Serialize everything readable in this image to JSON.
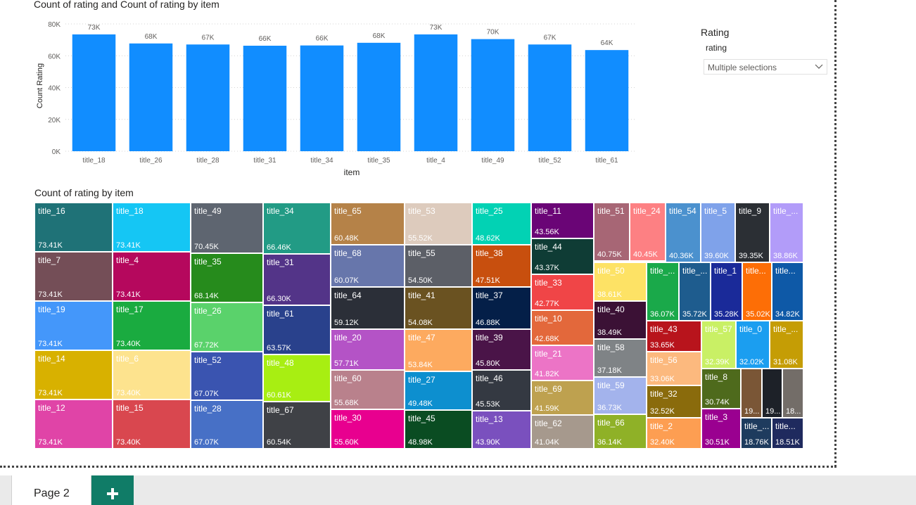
{
  "bar_visual": {
    "title": "Count of rating and Count of rating by item"
  },
  "treemap_visual": {
    "title": "Count of rating by item"
  },
  "slicer": {
    "header": "Rating",
    "field": "rating",
    "selected": "Multiple selections",
    "icon": "chevron-down-icon"
  },
  "pages": {
    "tabs": [
      {
        "label": "Page 2"
      }
    ],
    "add_icon": "plus-icon"
  },
  "colors": {
    "bar": "#118dff",
    "grid": "#d4d4d4",
    "axis_text": "#605e5c",
    "add_tab": "#107c67"
  },
  "chart_data": [
    {
      "type": "bar",
      "title": "Count of rating and Count of rating by item",
      "xlabel": "item",
      "ylabel": "Count Rating",
      "ylim": [
        0,
        80000
      ],
      "yticks": [
        {
          "value": 0,
          "label": "0K"
        },
        {
          "value": 20000,
          "label": "20K"
        },
        {
          "value": 40000,
          "label": "40K"
        },
        {
          "value": 60000,
          "label": "60K"
        },
        {
          "value": 80000,
          "label": "80K"
        }
      ],
      "grid": true,
      "categories": [
        "title_18",
        "title_26",
        "title_28",
        "title_31",
        "title_34",
        "title_35",
        "title_4",
        "title_49",
        "title_52",
        "title_61"
      ],
      "values": [
        73410,
        67720,
        67070,
        66300,
        66460,
        68140,
        73410,
        70450,
        67070,
        63570
      ],
      "data_labels": [
        "73K",
        "68K",
        "67K",
        "66K",
        "66K",
        "68K",
        "73K",
        "70K",
        "67K",
        "64K"
      ]
    },
    {
      "type": "treemap",
      "title": "Count of rating by item",
      "items": [
        {
          "name": "title_16",
          "label": "73.41K",
          "value": 73410,
          "color": "#1f7277"
        },
        {
          "name": "title_7",
          "label": "73.41K",
          "value": 73410,
          "color": "#744e57"
        },
        {
          "name": "title_19",
          "label": "73.41K",
          "value": 73410,
          "color": "#4497fa"
        },
        {
          "name": "title_14",
          "label": "73.41K",
          "value": 73410,
          "color": "#d8b100"
        },
        {
          "name": "title_12",
          "label": "73.41K",
          "value": 73410,
          "color": "#e044a7"
        },
        {
          "name": "title_18",
          "label": "73.41K",
          "value": 73410,
          "color": "#15c6f4"
        },
        {
          "name": "title_4",
          "label": "73.41K",
          "value": 73410,
          "color": "#b5085d"
        },
        {
          "name": "title_17",
          "label": "73.40K",
          "value": 73400,
          "color": "#1aab40"
        },
        {
          "name": "title_6",
          "label": "73.40K",
          "value": 73400,
          "color": "#fde38e"
        },
        {
          "name": "title_15",
          "label": "73.40K",
          "value": 73400,
          "color": "#d9474f"
        },
        {
          "name": "title_49",
          "label": "70.45K",
          "value": 70450,
          "color": "#5e6570"
        },
        {
          "name": "title_35",
          "label": "68.14K",
          "value": 68140,
          "color": "#268b1c"
        },
        {
          "name": "title_26",
          "label": "67.72K",
          "value": 67720,
          "color": "#5ad26b"
        },
        {
          "name": "title_52",
          "label": "67.07K",
          "value": 67070,
          "color": "#3a54b0"
        },
        {
          "name": "title_28",
          "label": "67.07K",
          "value": 67070,
          "color": "#4770c6"
        },
        {
          "name": "title_34",
          "label": "66.46K",
          "value": 66460,
          "color": "#229b85"
        },
        {
          "name": "title_31",
          "label": "66.30K",
          "value": 66300,
          "color": "#533488"
        },
        {
          "name": "title_61",
          "label": "63.57K",
          "value": 63570,
          "color": "#29418c"
        },
        {
          "name": "title_48",
          "label": "60.61K",
          "value": 60610,
          "color": "#a8ee12"
        },
        {
          "name": "title_67",
          "label": "60.54K",
          "value": 60540,
          "color": "#3f4146"
        },
        {
          "name": "title_65",
          "label": "60.48K",
          "value": 60480,
          "color": "#b58248"
        },
        {
          "name": "title_68",
          "label": "60.07K",
          "value": 60070,
          "color": "#6776ab"
        },
        {
          "name": "title_64",
          "label": "59.12K",
          "value": 59120,
          "color": "#2b2f38"
        },
        {
          "name": "title_20",
          "label": "57.71K",
          "value": 57710,
          "color": "#b453c6"
        },
        {
          "name": "title_60",
          "label": "55.68K",
          "value": 55680,
          "color": "#b9818c"
        },
        {
          "name": "title_30",
          "label": "55.60K",
          "value": 55600,
          "color": "#e8008f"
        },
        {
          "name": "title_53",
          "label": "55.52K",
          "value": 55520,
          "color": "#ddcbbd"
        },
        {
          "name": "title_55",
          "label": "54.50K",
          "value": 54500,
          "color": "#5c5f67"
        },
        {
          "name": "title_41",
          "label": "54.08K",
          "value": 54080,
          "color": "#6a5221"
        },
        {
          "name": "title_47",
          "label": "53.84K",
          "value": 53840,
          "color": "#fdaa5f"
        },
        {
          "name": "title_27",
          "label": "49.48K",
          "value": 49480,
          "color": "#0d8fcf"
        },
        {
          "name": "title_45",
          "label": "48.98K",
          "value": 48980,
          "color": "#0a4c22"
        },
        {
          "name": "title_25",
          "label": "48.62K",
          "value": 48620,
          "color": "#02d2b4"
        },
        {
          "name": "title_38",
          "label": "47.51K",
          "value": 47510,
          "color": "#c84f0e"
        },
        {
          "name": "title_37",
          "label": "46.88K",
          "value": 46880,
          "color": "#041f48"
        },
        {
          "name": "title_39",
          "label": "45.80K",
          "value": 45800,
          "color": "#4a1448"
        },
        {
          "name": "title_46",
          "label": "45.53K",
          "value": 45530,
          "color": "#343942"
        },
        {
          "name": "title_13",
          "label": "43.90K",
          "value": 43900,
          "color": "#7a50be"
        },
        {
          "name": "title_11",
          "label": "43.56K",
          "value": 43560,
          "color": "#6a0576"
        },
        {
          "name": "title_44",
          "label": "43.37K",
          "value": 43370,
          "color": "#0f3c35"
        },
        {
          "name": "title_33",
          "label": "42.77K",
          "value": 42770,
          "color": "#f04547"
        },
        {
          "name": "title_10",
          "label": "42.68K",
          "value": 42680,
          "color": "#e3683b"
        },
        {
          "name": "title_21",
          "label": "41.82K",
          "value": 41820,
          "color": "#ec74c6"
        },
        {
          "name": "title_69",
          "label": "41.59K",
          "value": 41590,
          "color": "#bea14f"
        },
        {
          "name": "title_62",
          "label": "41.04K",
          "value": 41040,
          "color": "#a6998d"
        },
        {
          "name": "title_51",
          "label": "40.75K",
          "value": 40750,
          "color": "#a76675"
        },
        {
          "name": "title_24",
          "label": "40.45K",
          "value": 40450,
          "color": "#fd8083"
        },
        {
          "name": "title_50",
          "label": "38.61K",
          "value": 38610,
          "color": "#fde265"
        },
        {
          "name": "title_40",
          "label": "38.49K",
          "value": 38490,
          "color": "#3b1135"
        },
        {
          "name": "title_58",
          "label": "37.18K",
          "value": 37180,
          "color": "#7f8386"
        },
        {
          "name": "title_59",
          "label": "36.73K",
          "value": 36730,
          "color": "#a3b3ec"
        },
        {
          "name": "title_66",
          "label": "36.14K",
          "value": 36140,
          "color": "#8fb127"
        },
        {
          "name": "title_54",
          "label": "40.36K",
          "value": 40360,
          "color": "#4b91ce"
        },
        {
          "name": "title_5",
          "label": "39.60K",
          "value": 39600,
          "color": "#7fa2ea"
        },
        {
          "name": "title_9",
          "label": "39.35K",
          "value": 39350,
          "color": "#2b2f34"
        },
        {
          "name": "title_...",
          "label": "38.86K",
          "value": 38860,
          "color": "#b29cf9"
        },
        {
          "name": "title_...",
          "label": "36.07K",
          "value": 36070,
          "color": "#1aa94a"
        },
        {
          "name": "title_...",
          "label": "35.72K",
          "value": 35720,
          "color": "#1e5c8e"
        },
        {
          "name": "title_1",
          "label": "35.28K",
          "value": 35280,
          "color": "#1a2a99"
        },
        {
          "name": "title...",
          "label": "35.02K",
          "value": 35020,
          "color": "#fd6e06"
        },
        {
          "name": "title...",
          "label": "34.82K",
          "value": 34820,
          "color": "#0e59a7"
        },
        {
          "name": "title_43",
          "label": "33.65K",
          "value": 33650,
          "color": "#b8141c"
        },
        {
          "name": "title_56",
          "label": "33.06K",
          "value": 33060,
          "color": "#fcb97e"
        },
        {
          "name": "title_32",
          "label": "32.52K",
          "value": 32520,
          "color": "#8a6b0c"
        },
        {
          "name": "title_2",
          "label": "32.40K",
          "value": 32400,
          "color": "#fd9e52"
        },
        {
          "name": "title_57",
          "label": "32.39K",
          "value": 32390,
          "color": "#c9f065"
        },
        {
          "name": "title_0",
          "label": "32.02K",
          "value": 32020,
          "color": "#1b9ef0"
        },
        {
          "name": "title_...",
          "label": "31.08K",
          "value": 31080,
          "color": "#c59d05"
        },
        {
          "name": "title_8",
          "label": "30.74K",
          "value": 30740,
          "color": "#4e6a1c"
        },
        {
          "name": "title_3",
          "label": "30.51K",
          "value": 30510,
          "color": "#9a0090"
        },
        {
          "name": "",
          "label": "19...",
          "value": 19000,
          "color": "#7a5636"
        },
        {
          "name": "",
          "label": "19...",
          "value": 19000,
          "color": "#1d2128"
        },
        {
          "name": "",
          "label": "18...",
          "value": 18900,
          "color": "#736d68"
        },
        {
          "name": "title_...",
          "label": "18.76K",
          "value": 18760,
          "color": "#1e3b5e"
        },
        {
          "name": "title...",
          "label": "18.51K",
          "value": 18510,
          "color": "#1f2a5e"
        }
      ]
    }
  ]
}
